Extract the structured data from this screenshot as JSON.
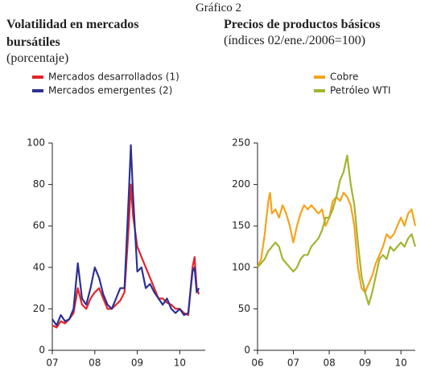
{
  "title": "Gráfico 2",
  "chart_data": [
    {
      "type": "line",
      "title": "Volatilidad en mercados bursátiles",
      "subtitle": "(porcentaje)",
      "x": [
        2007.0,
        2007.1,
        2007.2,
        2007.3,
        2007.4,
        2007.5,
        2007.6,
        2007.7,
        2007.8,
        2007.9,
        2008.0,
        2008.1,
        2008.2,
        2008.3,
        2008.4,
        2008.5,
        2008.6,
        2008.7,
        2008.8,
        2008.85,
        2008.9,
        2009.0,
        2009.1,
        2009.2,
        2009.3,
        2009.4,
        2009.5,
        2009.6,
        2009.7,
        2009.8,
        2009.9,
        2010.0,
        2010.1,
        2010.2,
        2010.3,
        2010.35,
        2010.4,
        2010.45
      ],
      "series": [
        {
          "name": "Mercados desarrollados (1)",
          "color": "#e3242b",
          "values": [
            12,
            11,
            14,
            13,
            15,
            18,
            30,
            22,
            20,
            25,
            28,
            30,
            25,
            20,
            20,
            22,
            24,
            28,
            60,
            80,
            65,
            50,
            45,
            40,
            35,
            30,
            25,
            25,
            23,
            22,
            20,
            20,
            18,
            17,
            40,
            45,
            30,
            27
          ]
        },
        {
          "name": "Mercados emergentes (2)",
          "color": "#2e3192",
          "values": [
            15,
            12,
            17,
            14,
            15,
            20,
            42,
            25,
            22,
            30,
            40,
            35,
            27,
            22,
            20,
            25,
            30,
            30,
            75,
            99,
            75,
            38,
            40,
            30,
            32,
            28,
            25,
            22,
            25,
            20,
            18,
            20,
            17,
            18,
            38,
            40,
            28,
            30
          ]
        }
      ],
      "xlim": [
        2007,
        2010.6
      ],
      "ylim": [
        0,
        100
      ],
      "xticks": [
        {
          "value": 2007,
          "label": "07"
        },
        {
          "value": 2008,
          "label": "08"
        },
        {
          "value": 2009,
          "label": "09"
        },
        {
          "value": 2010,
          "label": "10"
        }
      ],
      "yticks": [
        0,
        20,
        40,
        60,
        80,
        100
      ]
    },
    {
      "type": "line",
      "title": "Precios de productos básicos",
      "subtitle": "(índices 02/ene./2006=100)",
      "x": [
        2006.0,
        2006.1,
        2006.2,
        2006.3,
        2006.35,
        2006.4,
        2006.5,
        2006.6,
        2006.7,
        2006.8,
        2006.9,
        2007.0,
        2007.1,
        2007.2,
        2007.3,
        2007.4,
        2007.5,
        2007.6,
        2007.7,
        2007.8,
        2007.9,
        2008.0,
        2008.1,
        2008.2,
        2008.3,
        2008.4,
        2008.5,
        2008.6,
        2008.7,
        2008.8,
        2008.9,
        2009.0,
        2009.1,
        2009.2,
        2009.3,
        2009.4,
        2009.5,
        2009.6,
        2009.7,
        2009.8,
        2009.9,
        2010.0,
        2010.1,
        2010.2,
        2010.3,
        2010.4
      ],
      "series": [
        {
          "name": "Cobre",
          "color": "#f7a21b",
          "values": [
            100,
            110,
            140,
            180,
            190,
            165,
            170,
            160,
            175,
            165,
            150,
            130,
            150,
            165,
            175,
            170,
            175,
            170,
            165,
            170,
            150,
            160,
            180,
            185,
            180,
            190,
            185,
            175,
            150,
            100,
            75,
            70,
            80,
            90,
            105,
            115,
            125,
            140,
            135,
            140,
            150,
            160,
            150,
            165,
            170,
            150
          ]
        },
        {
          "name": "Petróleo WTI",
          "color": "#a3b430",
          "values": [
            100,
            105,
            110,
            120,
            122,
            125,
            130,
            125,
            110,
            105,
            100,
            95,
            100,
            110,
            115,
            115,
            125,
            130,
            135,
            145,
            160,
            160,
            170,
            185,
            205,
            215,
            235,
            200,
            175,
            130,
            90,
            70,
            55,
            70,
            90,
            110,
            115,
            110,
            125,
            120,
            125,
            130,
            125,
            135,
            140,
            125
          ]
        }
      ],
      "xlim": [
        2006,
        2010.4
      ],
      "ylim": [
        0,
        250
      ],
      "xticks": [
        {
          "value": 2006,
          "label": "06"
        },
        {
          "value": 2007,
          "label": "07"
        },
        {
          "value": 2008,
          "label": "08"
        },
        {
          "value": 2009,
          "label": "09"
        },
        {
          "value": 2010,
          "label": "10"
        }
      ],
      "yticks": [
        0,
        50,
        100,
        150,
        200,
        250
      ]
    }
  ]
}
